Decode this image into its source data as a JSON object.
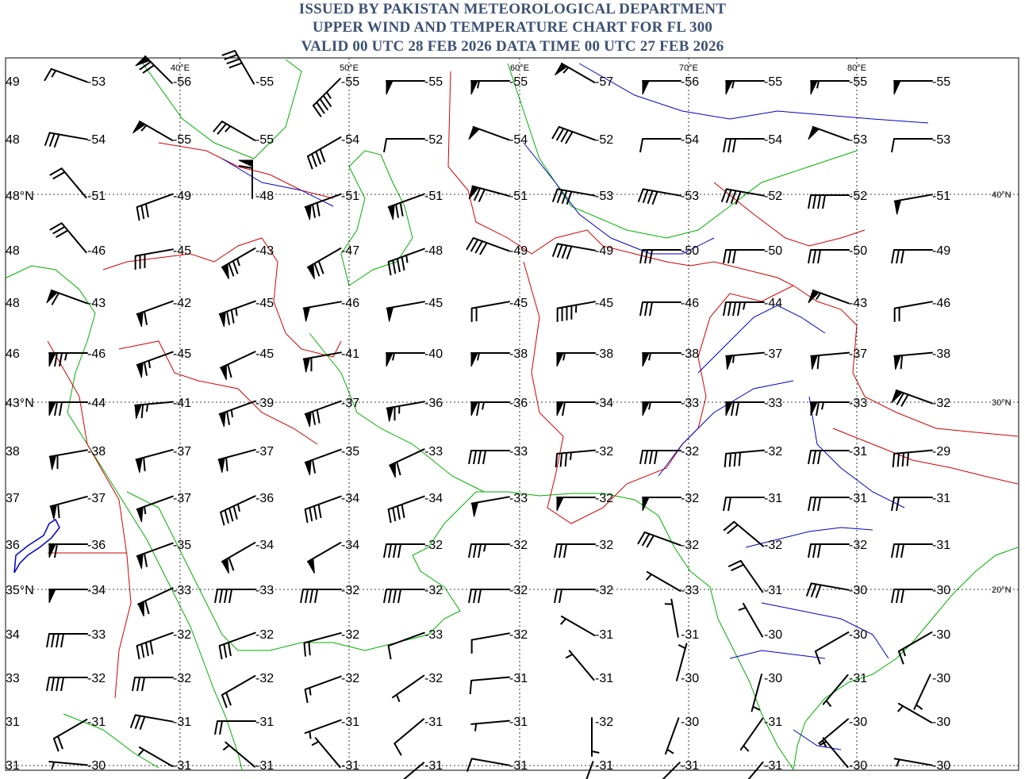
{
  "header": {
    "line1": "ISSUED BY PAKISTAN METEOROLOGICAL DEPARTMENT",
    "line2": "UPPER WIND AND TEMPERATURE CHART FOR FL 300",
    "line3": "VALID 00 UTC 28 FEB 2026 DATA TIME 00 UTC 27 FEB 2026",
    "color": "#3d5173"
  },
  "map": {
    "lon_labels": [
      "40°E",
      "50°E",
      "60°E",
      "70°E",
      "80°E"
    ],
    "lat_labels": [
      "40°N",
      "30°N",
      "20°N"
    ],
    "edge_labels": [
      "48°N",
      "43°N",
      "35°N"
    ],
    "colors": {
      "border": "#d40000",
      "coast": "#00b000",
      "river": "#0000cc",
      "barb": "#000000",
      "grid": "#000000"
    }
  },
  "temperature_rows": [
    {
      "left": "49",
      "values": [
        "-53",
        "-56",
        "-55",
        "-55",
        "-55",
        "-55",
        "-57",
        "-56",
        "-55",
        "-55",
        "-55"
      ]
    },
    {
      "left": "48",
      "values": [
        "-54",
        "-55",
        "-55",
        "-54",
        "-52",
        "-54",
        "-52",
        "-54",
        "-54",
        "-53",
        "-53"
      ]
    },
    {
      "left": "",
      "values": [
        "-51",
        "-49",
        "-48",
        "-51",
        "-51",
        "-51",
        "-53",
        "-53",
        "-52",
        "-52",
        "-51"
      ]
    },
    {
      "left": "48",
      "values": [
        "-46",
        "-45",
        "-43",
        "-47",
        "-48",
        "-49",
        "-49",
        "-50",
        "-50",
        "-50",
        "-49"
      ]
    },
    {
      "left": "48",
      "values": [
        "-43",
        "-42",
        "-45",
        "-46",
        "-45",
        "-45",
        "-45",
        "-46",
        "-44",
        "-43",
        "-46"
      ]
    },
    {
      "left": "46",
      "values": [
        "-46",
        "-45",
        "-45",
        "-41",
        "-40",
        "-38",
        "-38",
        "-38",
        "-37",
        "-37",
        "-38"
      ]
    },
    {
      "left": "",
      "values": [
        "-44",
        "-41",
        "-39",
        "-37",
        "-36",
        "-36",
        "-34",
        "-33",
        "-33",
        "-33",
        "-32"
      ]
    },
    {
      "left": "38",
      "values": [
        "-38",
        "-37",
        "-37",
        "-35",
        "-33",
        "-33",
        "-32",
        "-32",
        "-32",
        "-31",
        "-29"
      ]
    },
    {
      "left": "37",
      "values": [
        "-37",
        "-37",
        "-36",
        "-34",
        "-34",
        "-33",
        "-32",
        "-32",
        "-31",
        "-31",
        "-31"
      ]
    },
    {
      "left": "36",
      "values": [
        "-36",
        "-35",
        "-34",
        "-34",
        "-32",
        "-32",
        "-32",
        "-32",
        "-32",
        "-32",
        "-31"
      ]
    },
    {
      "left": "",
      "values": [
        "-34",
        "-33",
        "-33",
        "-32",
        "-32",
        "-32",
        "-32",
        "-33",
        "-31",
        "-30",
        "-30"
      ]
    },
    {
      "left": "34",
      "values": [
        "-33",
        "-32",
        "-32",
        "-32",
        "-33",
        "-32",
        "-31",
        "-31",
        "-30",
        "-30",
        "-30"
      ]
    },
    {
      "left": "33",
      "values": [
        "-32",
        "-32",
        "-32",
        "-32",
        "-32",
        "-31",
        "-31",
        "-30",
        "-30",
        "-31",
        "-30"
      ]
    },
    {
      "left": "31",
      "values": [
        "-31",
        "-31",
        "-31",
        "-31",
        "-31",
        "-31",
        "-32",
        "-30",
        "-31",
        "-30",
        "-30"
      ]
    },
    {
      "left": "31",
      "values": [
        "-30",
        "-31",
        "-31",
        "-31",
        "-31",
        "-31",
        "-31",
        "-31",
        "-31",
        "-30",
        "-30"
      ]
    }
  ],
  "wind_rows": [
    {
      "dir": [
        290,
        315,
        330,
        225,
        270,
        270,
        300,
        270,
        270,
        270,
        270
      ],
      "spd": [
        15,
        70,
        40,
        45,
        50,
        55,
        55,
        50,
        55,
        55,
        50
      ]
    },
    {
      "dir": [
        280,
        300,
        300,
        240,
        270,
        290,
        290,
        270,
        270,
        290,
        270
      ],
      "spd": [
        30,
        55,
        25,
        40,
        10,
        50,
        40,
        10,
        30,
        50,
        10
      ]
    },
    {
      "dir": [
        320,
        250,
        0,
        250,
        250,
        285,
        280,
        280,
        280,
        270,
        260
      ],
      "spd": [
        20,
        30,
        60,
        70,
        70,
        70,
        40,
        40,
        40,
        40,
        50
      ]
    },
    {
      "dir": [
        320,
        260,
        240,
        240,
        250,
        290,
        280,
        270,
        270,
        270,
        270
      ],
      "spd": [
        30,
        30,
        75,
        70,
        45,
        40,
        40,
        30,
        30,
        30,
        30
      ]
    },
    {
      "dir": [
        290,
        250,
        250,
        260,
        260,
        260,
        260,
        270,
        270,
        290,
        260
      ],
      "spd": [
        60,
        60,
        75,
        50,
        50,
        20,
        45,
        30,
        45,
        55,
        20
      ]
    },
    {
      "dir": [
        270,
        250,
        245,
        260,
        270,
        270,
        270,
        270,
        265,
        265,
        265
      ],
      "spd": [
        75,
        65,
        60,
        60,
        55,
        55,
        55,
        55,
        55,
        60,
        60
      ]
    },
    {
      "dir": [
        270,
        265,
        250,
        250,
        260,
        270,
        270,
        270,
        270,
        270,
        290
      ],
      "spd": [
        70,
        65,
        65,
        70,
        65,
        65,
        60,
        55,
        70,
        65,
        70
      ]
    },
    {
      "dir": [
        260,
        255,
        255,
        250,
        245,
        270,
        265,
        270,
        265,
        270,
        265
      ],
      "spd": [
        60,
        60,
        60,
        60,
        60,
        40,
        35,
        40,
        40,
        30,
        40
      ]
    },
    {
      "dir": [
        255,
        250,
        245,
        250,
        250,
        260,
        270,
        270,
        270,
        270,
        270
      ],
      "spd": [
        60,
        55,
        45,
        40,
        40,
        50,
        50,
        50,
        20,
        30,
        20
      ]
    },
    {
      "dir": [
        270,
        250,
        240,
        240,
        270,
        270,
        270,
        290,
        310,
        270,
        270
      ],
      "spd": [
        60,
        60,
        60,
        50,
        40,
        35,
        30,
        30,
        20,
        30,
        30
      ]
    },
    {
      "dir": [
        270,
        245,
        270,
        270,
        270,
        270,
        270,
        300,
        325,
        280,
        270
      ],
      "spd": [
        50,
        60,
        40,
        40,
        40,
        30,
        20,
        5,
        20,
        30,
        30
      ]
    },
    {
      "dir": [
        270,
        250,
        250,
        255,
        250,
        260,
        300,
        350,
        330,
        240,
        240
      ],
      "spd": [
        40,
        40,
        30,
        20,
        10,
        10,
        5,
        5,
        5,
        10,
        15
      ]
    },
    {
      "dir": [
        270,
        270,
        240,
        250,
        235,
        265,
        320,
        15,
        195,
        220,
        205
      ],
      "spd": [
        40,
        30,
        20,
        15,
        5,
        10,
        5,
        5,
        5,
        5,
        5
      ]
    },
    {
      "dir": [
        240,
        280,
        270,
        250,
        230,
        265,
        180,
        200,
        215,
        230,
        300
      ],
      "spd": [
        20,
        30,
        20,
        5,
        10,
        5,
        5,
        5,
        5,
        5,
        5
      ]
    },
    {
      "dir": [
        275,
        300,
        310,
        320,
        230,
        280,
        200,
        225,
        220,
        320,
        280
      ],
      "spd": [
        5,
        5,
        5,
        5,
        10,
        10,
        5,
        5,
        5,
        5,
        5
      ]
    }
  ]
}
